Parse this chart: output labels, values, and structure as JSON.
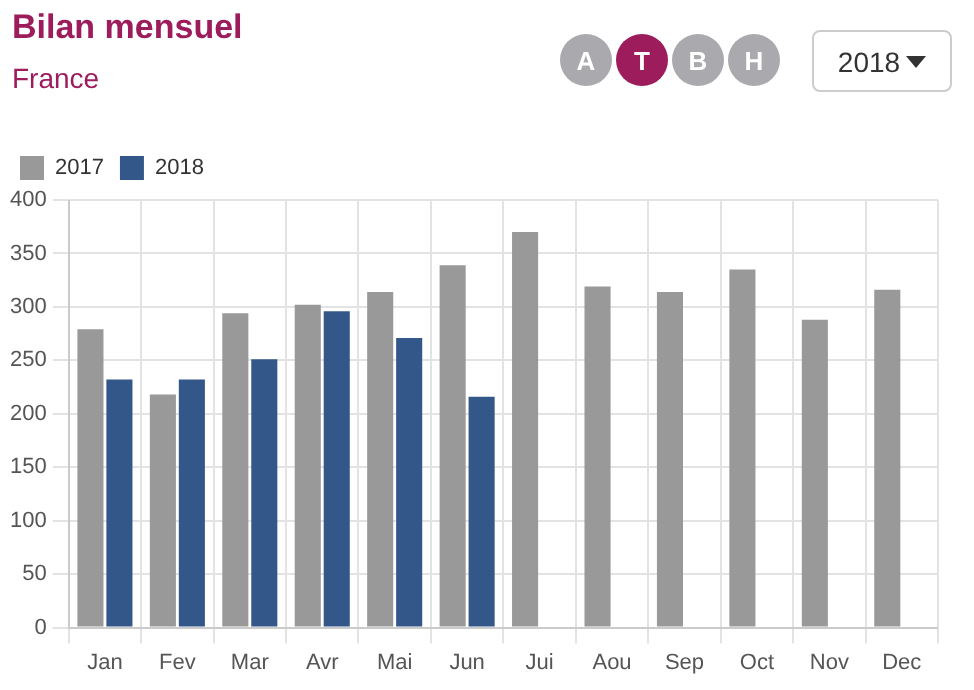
{
  "chart_data": {
    "type": "bar",
    "title": "Bilan mensuel",
    "subtitle": "France",
    "categories": [
      "Jan",
      "Fev",
      "Mar",
      "Avr",
      "Mai",
      "Jun",
      "Jui",
      "Aou",
      "Sep",
      "Oct",
      "Nov",
      "Dec"
    ],
    "series": [
      {
        "name": "2017",
        "color": "#999999",
        "values": [
          279,
          218,
          294,
          302,
          314,
          339,
          370,
          319,
          314,
          335,
          288,
          316
        ]
      },
      {
        "name": "2018",
        "color": "#34578a",
        "values": [
          232,
          232,
          251,
          296,
          271,
          216,
          null,
          null,
          null,
          null,
          null,
          null
        ]
      }
    ],
    "ylim": [
      0,
      400
    ],
    "yticks": [
      0,
      50,
      100,
      150,
      200,
      250,
      300,
      350,
      400
    ],
    "grid": true,
    "legend": "top left",
    "annotations": [
      "A",
      "T",
      "B",
      "H",
      "2018"
    ]
  }
}
